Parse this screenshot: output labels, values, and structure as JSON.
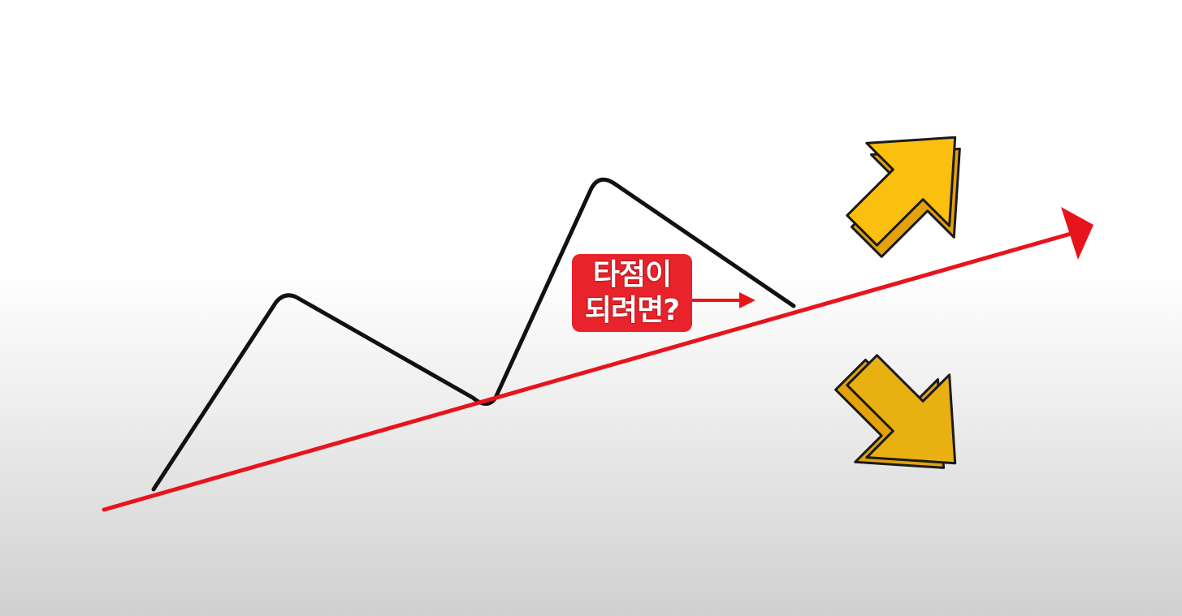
{
  "callout": {
    "line1": "타점이",
    "line2": "되려면?"
  },
  "colors": {
    "trendline": "#e8141b",
    "price_line": "#111111",
    "callout_bg": "#e8232b",
    "callout_text": "#ffffff",
    "arrow_fill": "#fbbf10",
    "arrow_depth": "#e3a20a",
    "arrow_outline": "#1a1a1a"
  },
  "icons": {
    "up": "arrow-up-right-icon",
    "down": "arrow-down-right-icon"
  }
}
